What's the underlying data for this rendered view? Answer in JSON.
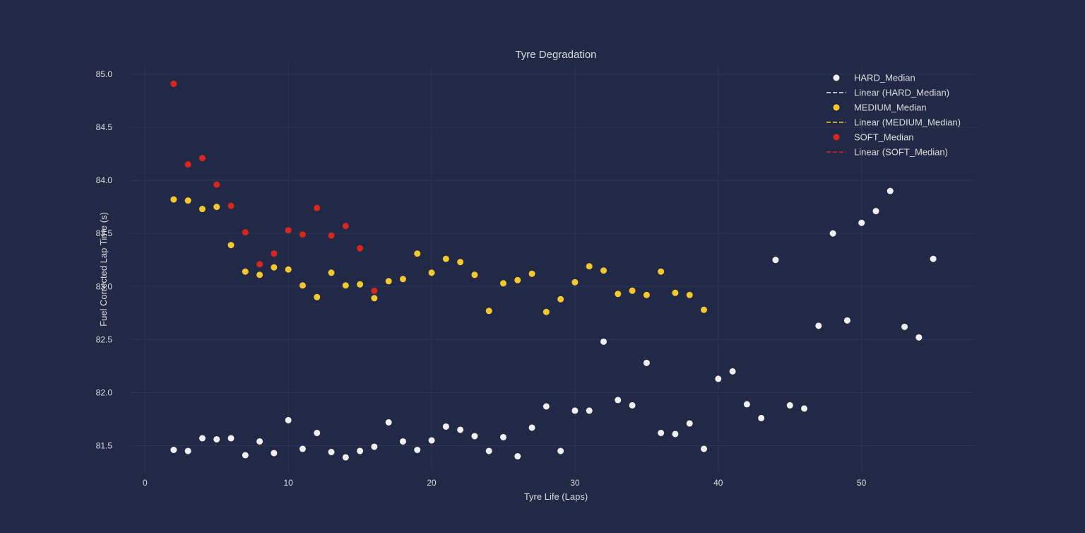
{
  "chart_data": {
    "type": "scatter",
    "title": "Tyre Degradation",
    "xlabel": "Tyre Life (Laps)",
    "ylabel": "Fuel Corrected Lap Time (s)",
    "xlim": [
      -1,
      58
    ],
    "ylim": [
      81.25,
      85.1
    ],
    "xticks": [
      0,
      10,
      20,
      30,
      40,
      50
    ],
    "yticks": [
      81.5,
      82.0,
      82.5,
      83.0,
      83.5,
      84.0,
      84.5,
      85.0
    ],
    "ytick_labels": [
      "81.5",
      "82.0",
      "82.5",
      "83.0",
      "83.5",
      "84.0",
      "84.5",
      "85.0"
    ],
    "grid": true,
    "legend_position": "top-right",
    "background": "#212946",
    "series": [
      {
        "name": "HARD_Median",
        "trend_name": "Linear (HARD_Median)",
        "color": "#f0f0f0",
        "x": [
          2,
          3,
          4,
          5,
          6,
          7,
          8,
          9,
          10,
          11,
          12,
          13,
          14,
          15,
          16,
          17,
          18,
          19,
          20,
          21,
          22,
          23,
          24,
          25,
          26,
          27,
          28,
          29,
          30,
          31,
          32,
          33,
          34,
          35,
          36,
          37,
          38,
          39,
          40,
          41,
          42,
          43,
          44,
          45,
          46,
          47,
          48,
          49,
          50,
          51,
          52,
          53,
          54,
          55
        ],
        "y": [
          81.46,
          81.45,
          81.57,
          81.56,
          81.57,
          81.41,
          81.54,
          81.43,
          81.74,
          81.47,
          81.62,
          81.44,
          81.39,
          81.45,
          81.49,
          81.72,
          81.54,
          81.46,
          81.55,
          81.68,
          81.65,
          81.59,
          81.45,
          81.58,
          81.4,
          81.67,
          81.87,
          81.45,
          81.83,
          81.83,
          82.48,
          81.93,
          81.88,
          82.28,
          81.62,
          81.61,
          81.71,
          81.47,
          82.13,
          82.2,
          81.89,
          81.76,
          83.25,
          81.88,
          81.85,
          82.63,
          83.5,
          82.68,
          83.6,
          83.71,
          83.9,
          82.62,
          82.52,
          83.26
        ]
      },
      {
        "name": "MEDIUM_Median",
        "trend_name": "Linear (MEDIUM_Median)",
        "color": "#f4c92e",
        "x": [
          2,
          3,
          4,
          5,
          6,
          7,
          8,
          9,
          10,
          11,
          12,
          13,
          14,
          15,
          16,
          17,
          18,
          19,
          20,
          21,
          22,
          23,
          24,
          25,
          26,
          27,
          28,
          29,
          30,
          31,
          32,
          33,
          34,
          35,
          36,
          37,
          38,
          39
        ],
        "y": [
          83.82,
          83.81,
          83.73,
          83.75,
          83.39,
          83.14,
          83.11,
          83.18,
          83.16,
          83.01,
          82.9,
          83.13,
          83.01,
          83.02,
          82.89,
          83.05,
          83.07,
          83.31,
          83.13,
          83.26,
          83.23,
          83.11,
          82.77,
          83.03,
          83.06,
          83.12,
          82.76,
          82.88,
          83.04,
          83.19,
          83.15,
          82.93,
          82.96,
          82.92,
          83.14,
          82.94,
          82.92,
          82.78
        ]
      },
      {
        "name": "SOFT_Median",
        "trend_name": "Linear (SOFT_Median)",
        "color": "#d8261f",
        "x": [
          2,
          3,
          4,
          5,
          6,
          7,
          8,
          9,
          10,
          11,
          12,
          13,
          14,
          15,
          16
        ],
        "y": [
          84.91,
          84.15,
          84.21,
          83.96,
          83.76,
          83.51,
          83.21,
          83.31,
          83.53,
          83.49,
          83.74,
          83.48,
          83.57,
          83.36,
          82.96
        ]
      }
    ]
  }
}
